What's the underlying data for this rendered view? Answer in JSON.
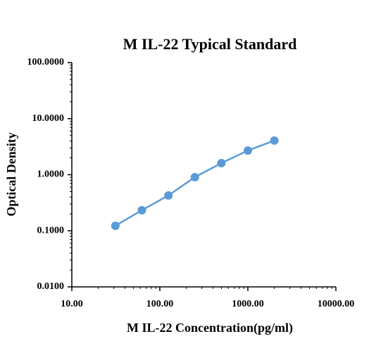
{
  "chart_data": {
    "type": "line",
    "title": "M IL-22 Typical Standard",
    "x_label": "M IL-22 Concentration(pg/ml)",
    "y_label": "Optical Density",
    "x_log": true,
    "y_log": true,
    "x": [
      31.25,
      62.5,
      125,
      250,
      500,
      1000,
      2000
    ],
    "series": [
      {
        "color": "#5b9bd5",
        "values": [
          0.123,
          0.233,
          0.427,
          0.904,
          1.61,
          2.7,
          4.07
        ]
      }
    ],
    "xlim": [
      10,
      10000
    ],
    "xticks": [
      {
        "value": 10,
        "label": "10.00"
      },
      {
        "value": 100,
        "label": "100.00"
      },
      {
        "value": 1000,
        "label": "1000.00"
      },
      {
        "value": 10000,
        "label": "10000.00"
      }
    ],
    "ylim": [
      0.01,
      100
    ],
    "yticks": [
      {
        "value": 0.01,
        "label": "0.0100"
      },
      {
        "value": 0.1,
        "label": "0.1000"
      },
      {
        "value": 1,
        "label": "1.0000"
      },
      {
        "value": 10,
        "label": "10.0000"
      },
      {
        "value": 100,
        "label": "100.0000"
      }
    ]
  }
}
